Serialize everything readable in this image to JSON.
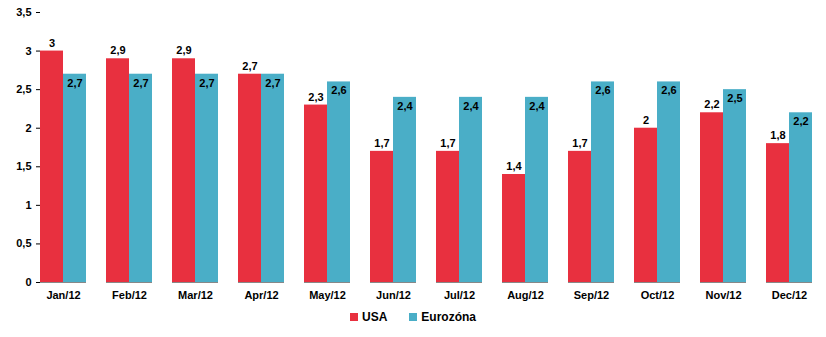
{
  "chart_data": {
    "type": "bar",
    "categories": [
      "Jan/12",
      "Feb/12",
      "Mar/12",
      "Apr/12",
      "May/12",
      "Jun/12",
      "Jul/12",
      "Aug/12",
      "Sep/12",
      "Oct/12",
      "Nov/12",
      "Dec/12"
    ],
    "series": [
      {
        "name": "USA",
        "color": "#e8303f",
        "values": [
          3,
          2.9,
          2.9,
          2.7,
          2.3,
          1.7,
          1.7,
          1.4,
          1.7,
          2,
          2.2,
          1.8
        ],
        "value_labels": [
          "3",
          "2,9",
          "2,9",
          "2,7",
          "2,3",
          "1,7",
          "1,7",
          "1,4",
          "1,7",
          "2",
          "2,2",
          "1,8"
        ]
      },
      {
        "name": "Eurozóna",
        "color": "#4aaec7",
        "values": [
          2.7,
          2.7,
          2.7,
          2.7,
          2.6,
          2.4,
          2.4,
          2.4,
          2.6,
          2.6,
          2.5,
          2.2
        ],
        "value_labels": [
          "2,7",
          "2,7",
          "2,7",
          "2,7",
          "2,6",
          "2,4",
          "2,4",
          "2,4",
          "2,6",
          "2,6",
          "2,5",
          "2,2"
        ]
      }
    ],
    "ylim": [
      0,
      3.5
    ],
    "yticks": [
      0,
      {
        "value": 0.5,
        "label": "0,5"
      },
      1,
      {
        "value": 1.5,
        "label": "1,5"
      },
      2,
      {
        "value": 2.5,
        "label": "2,5"
      },
      3,
      {
        "value": 3.5,
        "label": "3,5"
      }
    ],
    "grid": false,
    "data_labels": true,
    "legend": "bottom"
  }
}
